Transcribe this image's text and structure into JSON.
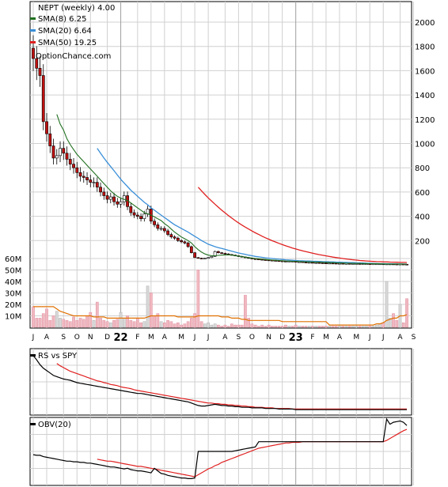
{
  "chart_data": {
    "type": "line",
    "title": "NEPT (weekly) 4.00",
    "watermark": "OptionChance.com",
    "legend": [
      {
        "name": "SMA(8) 6.25",
        "color": "#207020"
      },
      {
        "name": "SMA(20) 6.64",
        "color": "#3a8fd8"
      },
      {
        "name": "SMA(50) 19.25",
        "color": "#e02020"
      }
    ],
    "price_axis": {
      "ticks": [
        "2000",
        "1800",
        "1600",
        "1400",
        "1200",
        "1000",
        "800",
        "600",
        "400",
        "200"
      ],
      "values": [
        2000,
        1800,
        1600,
        1400,
        1200,
        1000,
        800,
        600,
        400,
        200
      ],
      "ylim": [
        0,
        2100
      ]
    },
    "volume_axis": {
      "ticks": [
        "60M",
        "50M",
        "40M",
        "30M",
        "20M",
        "10M"
      ],
      "values": [
        60,
        50,
        40,
        30,
        20,
        10
      ],
      "ylim": [
        0,
        65
      ]
    },
    "x_labels": [
      {
        "label": "J",
        "week": 0,
        "kind": "month"
      },
      {
        "label": "A",
        "week": 4,
        "kind": "month"
      },
      {
        "label": "S",
        "week": 9,
        "kind": "month"
      },
      {
        "label": "O",
        "week": 13,
        "kind": "month"
      },
      {
        "label": "N",
        "week": 17,
        "kind": "month"
      },
      {
        "label": "D",
        "week": 22,
        "kind": "month"
      },
      {
        "label": "22",
        "week": 26,
        "kind": "year"
      },
      {
        "label": "F",
        "week": 31,
        "kind": "month"
      },
      {
        "label": "M",
        "week": 35,
        "kind": "month"
      },
      {
        "label": "A",
        "week": 39,
        "kind": "month"
      },
      {
        "label": "M",
        "week": 44,
        "kind": "month"
      },
      {
        "label": "J",
        "week": 48,
        "kind": "month"
      },
      {
        "label": "J",
        "week": 52,
        "kind": "month"
      },
      {
        "label": "A",
        "week": 57,
        "kind": "month"
      },
      {
        "label": "S",
        "week": 61,
        "kind": "month"
      },
      {
        "label": "O",
        "week": 65,
        "kind": "month"
      },
      {
        "label": "N",
        "week": 70,
        "kind": "month"
      },
      {
        "label": "D",
        "week": 74,
        "kind": "month"
      },
      {
        "label": "23",
        "week": 78,
        "kind": "year"
      },
      {
        "label": "F",
        "week": 83,
        "kind": "month"
      },
      {
        "label": "M",
        "week": 87,
        "kind": "month"
      },
      {
        "label": "A",
        "week": 91,
        "kind": "month"
      },
      {
        "label": "M",
        "week": 96,
        "kind": "month"
      },
      {
        "label": "J",
        "week": 100,
        "kind": "month"
      },
      {
        "label": "J",
        "week": 104,
        "kind": "month"
      },
      {
        "label": "A",
        "week": 109,
        "kind": "month"
      },
      {
        "label": "S",
        "week": 113,
        "kind": "month"
      }
    ],
    "price_close": [
      1700,
      1620,
      1560,
      1180,
      1080,
      980,
      880,
      900,
      960,
      920,
      870,
      830,
      800,
      760,
      730,
      720,
      700,
      680,
      680,
      640,
      600,
      570,
      540,
      560,
      520,
      500,
      520,
      570,
      480,
      430,
      410,
      400,
      380,
      420,
      460,
      360,
      330,
      300,
      300,
      280,
      250,
      230,
      220,
      200,
      190,
      180,
      150,
      100,
      60,
      55,
      50,
      55,
      60,
      70,
      110,
      100,
      95,
      90,
      85,
      80,
      75,
      70,
      65,
      60,
      55,
      50,
      48,
      45,
      42,
      40,
      38,
      36,
      34,
      32,
      30,
      28,
      30,
      28,
      25,
      25,
      22,
      20,
      20,
      18,
      18,
      16,
      15,
      14,
      14,
      13,
      12,
      12,
      11,
      11,
      10,
      10,
      10,
      9,
      9,
      9,
      8,
      8,
      8,
      8,
      7,
      7,
      7,
      6,
      5,
      6,
      5,
      4
    ],
    "sma8": [
      null,
      null,
      null,
      null,
      null,
      null,
      null,
      1240,
      1160,
      1110,
      1040,
      990,
      950,
      910,
      880,
      850,
      820,
      790,
      760,
      730,
      700,
      670,
      640,
      610,
      585,
      565,
      550,
      540,
      530,
      510,
      490,
      470,
      450,
      430,
      420,
      410,
      395,
      380,
      365,
      340,
      320,
      295,
      270,
      250,
      230,
      215,
      200,
      180,
      150,
      125,
      105,
      90,
      80,
      75,
      75,
      78,
      80,
      82,
      83,
      80,
      76,
      72,
      68,
      64,
      60,
      56,
      53,
      50,
      47,
      44,
      42,
      40,
      38,
      36,
      34,
      32,
      31,
      30,
      29,
      28,
      27,
      26,
      25,
      24,
      23,
      22,
      21,
      20,
      19,
      18,
      17,
      16,
      15,
      14,
      13,
      13,
      12,
      12,
      11,
      11,
      10,
      10,
      9,
      9,
      8,
      8,
      7,
      7,
      7,
      7,
      6.5,
      6.25
    ],
    "sma20": [
      null,
      null,
      null,
      null,
      null,
      null,
      null,
      null,
      null,
      null,
      null,
      null,
      null,
      null,
      null,
      null,
      null,
      null,
      null,
      960,
      920,
      880,
      845,
      810,
      775,
      740,
      705,
      675,
      645,
      615,
      590,
      565,
      540,
      515,
      495,
      470,
      450,
      430,
      410,
      390,
      370,
      350,
      330,
      315,
      300,
      285,
      270,
      252,
      235,
      218,
      200,
      185,
      170,
      160,
      150,
      142,
      135,
      128,
      120,
      112,
      105,
      98,
      92,
      86,
      80,
      75,
      70,
      66,
      62,
      58,
      55,
      52,
      49,
      46,
      44,
      42,
      40,
      38,
      36,
      34,
      33,
      32,
      31,
      30,
      29,
      28,
      27,
      26,
      25,
      24,
      23,
      22,
      21,
      20,
      19,
      18,
      17,
      16,
      15,
      14,
      13,
      12,
      11,
      10,
      9.5,
      9,
      8.5,
      8,
      7.6,
      7.2,
      6.9,
      6.64
    ],
    "sma50": [
      null,
      null,
      null,
      null,
      null,
      null,
      null,
      null,
      null,
      null,
      null,
      null,
      null,
      null,
      null,
      null,
      null,
      null,
      null,
      null,
      null,
      null,
      null,
      null,
      null,
      null,
      null,
      null,
      null,
      null,
      null,
      null,
      null,
      null,
      null,
      null,
      null,
      null,
      null,
      null,
      null,
      null,
      null,
      null,
      null,
      null,
      null,
      null,
      null,
      640,
      610,
      580,
      552,
      525,
      500,
      475,
      450,
      428,
      406,
      385,
      365,
      346,
      328,
      311,
      295,
      279,
      264,
      250,
      236,
      223,
      211,
      199,
      188,
      177,
      167,
      157,
      148,
      139,
      131,
      123,
      116,
      109,
      102,
      96,
      90,
      84,
      79,
      74,
      69,
      64,
      60,
      56,
      52,
      48,
      45,
      42,
      39,
      36,
      34,
      32,
      30,
      28,
      27,
      26,
      25,
      24,
      23,
      22,
      21.5,
      20.5,
      20,
      19.25
    ],
    "volume": [
      18,
      8,
      8,
      12,
      16,
      6,
      10,
      14,
      8,
      7,
      6,
      5,
      9,
      6,
      8,
      7,
      10,
      13,
      6,
      22,
      8,
      6,
      5,
      4,
      6,
      7,
      13,
      8,
      10,
      6,
      5,
      8,
      4,
      5,
      36,
      30,
      10,
      12,
      5,
      4,
      6,
      5,
      3,
      4,
      2,
      3,
      5,
      8,
      12,
      50,
      5,
      3,
      4,
      2,
      3,
      2,
      1,
      2,
      1,
      3,
      2,
      2,
      2,
      28,
      8,
      3,
      2,
      1,
      2,
      1,
      2,
      1,
      1,
      1,
      1,
      2,
      1,
      1,
      2,
      1,
      1,
      1,
      1,
      1,
      1,
      1,
      1,
      1,
      1,
      1,
      1,
      1,
      1,
      1,
      1,
      1,
      1,
      1,
      1,
      1,
      1,
      1,
      2,
      3,
      4,
      40,
      8,
      12,
      6,
      20,
      4,
      25
    ],
    "volume_sma": [
      18,
      18,
      18,
      18,
      18,
      18,
      18,
      16,
      14,
      13,
      12,
      11,
      10,
      10,
      10,
      10,
      10,
      10,
      9,
      9,
      9,
      9,
      8,
      8,
      8,
      8,
      8,
      8,
      8,
      8,
      8,
      8,
      8,
      8,
      9,
      10,
      10,
      10,
      10,
      10,
      10,
      10,
      10,
      9,
      9,
      9,
      9,
      9,
      9,
      10,
      10,
      10,
      10,
      10,
      10,
      10,
      9,
      9,
      9,
      8,
      8,
      8,
      7,
      7,
      6,
      6,
      6,
      6,
      6,
      6,
      6,
      6,
      6,
      6,
      5,
      5,
      5,
      5,
      5,
      5,
      5,
      5,
      5,
      5,
      5,
      5,
      5,
      5,
      2,
      2,
      2,
      2,
      2,
      2,
      2,
      2,
      2,
      2,
      2,
      2,
      2,
      2,
      3,
      3,
      4,
      6,
      7,
      8,
      8,
      10,
      10,
      11
    ],
    "rs_label": "RS vs SPY",
    "rs": [
      95,
      88,
      80,
      74,
      70,
      66,
      62,
      60,
      58,
      56,
      55,
      54,
      52,
      50,
      49,
      48,
      47,
      46,
      45,
      44,
      43,
      42,
      41,
      40,
      39,
      38,
      37,
      36,
      35,
      34,
      33,
      32,
      32,
      31,
      30,
      29,
      28,
      27,
      26,
      25,
      24,
      23,
      22,
      21,
      20,
      19,
      18,
      16,
      14,
      12,
      11,
      11,
      12,
      13,
      14,
      13,
      12,
      12,
      11,
      11,
      10,
      10,
      9,
      9,
      9,
      8,
      8,
      8,
      8,
      7,
      7,
      7,
      7,
      6,
      6,
      6,
      6,
      6,
      5,
      5,
      5,
      5,
      5,
      5,
      5,
      5,
      5,
      5,
      5,
      5,
      5,
      5,
      5,
      5,
      5,
      5,
      5,
      5,
      5,
      5,
      5,
      5,
      5,
      5,
      5,
      5,
      5,
      5,
      5,
      5,
      5,
      5
    ],
    "rs_ma": [
      null,
      null,
      null,
      null,
      null,
      null,
      null,
      82,
      78,
      75,
      72,
      69,
      67,
      65,
      63,
      61,
      59,
      57,
      55,
      53,
      52,
      50,
      49,
      47,
      46,
      45,
      43,
      42,
      41,
      40,
      38,
      37,
      36,
      35,
      34,
      33,
      32,
      31,
      30,
      29,
      28,
      27,
      26,
      25,
      24,
      23,
      22,
      21,
      20,
      19,
      18,
      17,
      16,
      16,
      15,
      15,
      14,
      14,
      13,
      13,
      12,
      12,
      11,
      11,
      10,
      10,
      9,
      9,
      9,
      8,
      8,
      8,
      7,
      7,
      7,
      7,
      7,
      6,
      6,
      6,
      6,
      6,
      6,
      6,
      6,
      6,
      6,
      6,
      6,
      6,
      6,
      6,
      6,
      6,
      6,
      6,
      6,
      6,
      6,
      6,
      6,
      6,
      6,
      6,
      6,
      6,
      6,
      6,
      6,
      6,
      6,
      6
    ],
    "obv_label": "OBV(20)",
    "obv": [
      45,
      44,
      44,
      42,
      41,
      40,
      39,
      38,
      37,
      36,
      35,
      35,
      34,
      34,
      33,
      33,
      32,
      32,
      31,
      30,
      29,
      28,
      27,
      26,
      26,
      25,
      24,
      23,
      24,
      22,
      21,
      20,
      20,
      19,
      18,
      17,
      24,
      20,
      16,
      15,
      13,
      12,
      11,
      10,
      9,
      9,
      8,
      8,
      9,
      50,
      50,
      50,
      50,
      50,
      50,
      50,
      50,
      50,
      50,
      50,
      51,
      52,
      53,
      54,
      55,
      56,
      57,
      65,
      65,
      65,
      65,
      65,
      65,
      65,
      65,
      65,
      65,
      65,
      65,
      65,
      65,
      65,
      65,
      65,
      65,
      65,
      65,
      65,
      65,
      65,
      65,
      65,
      65,
      65,
      65,
      65,
      65,
      65,
      65,
      65,
      65,
      65,
      65,
      65,
      65,
      100,
      92,
      95,
      96,
      97,
      95,
      90
    ],
    "obv_ma": [
      null,
      null,
      null,
      null,
      null,
      null,
      null,
      null,
      null,
      null,
      null,
      null,
      null,
      null,
      null,
      null,
      null,
      null,
      null,
      38,
      37,
      36,
      35,
      35,
      34,
      33,
      32,
      31,
      30,
      29,
      28,
      27,
      27,
      26,
      25,
      24,
      23,
      22,
      21,
      20,
      19,
      18,
      17,
      16,
      15,
      14,
      13,
      12,
      11,
      14,
      17,
      20,
      23,
      25,
      28,
      30,
      33,
      35,
      37,
      39,
      41,
      43,
      45,
      47,
      49,
      51,
      53,
      55,
      56,
      57,
      58,
      59,
      60,
      61,
      62,
      63,
      63,
      64,
      64,
      64,
      65,
      65,
      65,
      65,
      65,
      65,
      65,
      65,
      65,
      65,
      65,
      65,
      65,
      65,
      65,
      65,
      65,
      65,
      65,
      65,
      65,
      65,
      65,
      65,
      65,
      67,
      70,
      73,
      76,
      79,
      82,
      84
    ]
  }
}
